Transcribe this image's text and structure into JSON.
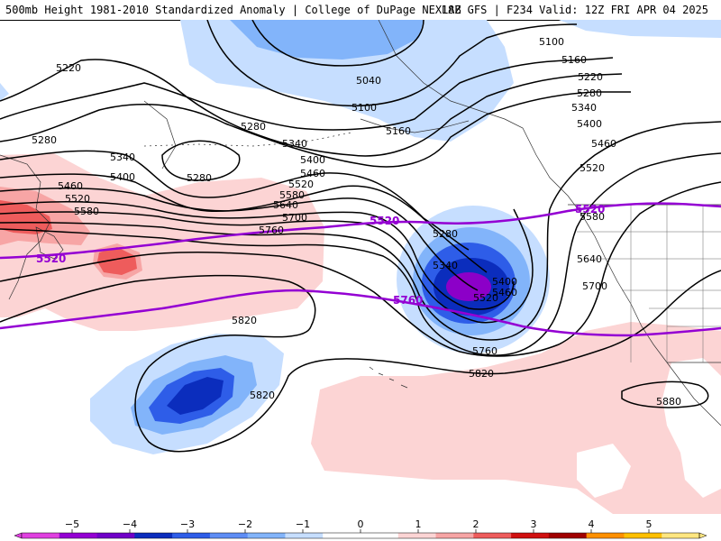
{
  "header": {
    "title_left": "500mb Height 1981-2010 Standardized Anomaly | College of DuPage NEXLAB",
    "title_right": "18Z GFS | F234 Valid: 12Z FRI APR 04 2025"
  },
  "map": {
    "height_contour_labels": [
      "5100",
      "5160",
      "5220",
      "5280",
      "5340",
      "5400",
      "5460",
      "5520",
      "5580",
      "5640",
      "5700",
      "5760",
      "5820",
      "5880",
      "5040"
    ],
    "thickness_labels": [
      "5520",
      "5760"
    ],
    "anomaly_centers": {
      "negative": [
        "Gulf of Alaska low",
        "Central Pacific low",
        "Bering / Arctic low"
      ],
      "positive": [
        "Japan / NW Pacific ridge",
        "Subtropical Pacific ridge"
      ]
    },
    "colors": {
      "neg1": "#c6deff",
      "neg2": "#82b4fa",
      "neg3": "#2e5de8",
      "neg4": "#0b2dbd",
      "neg5": "#8c00c8",
      "pos1": "#fcd4d4",
      "pos2": "#f7a5a5",
      "pos3": "#ee5c5c",
      "contour": "#000000",
      "thickness": "#9400d3",
      "coast": "#333333"
    }
  },
  "colorbar": {
    "ticks": [
      "−5",
      "−4",
      "−3",
      "−2",
      "−1",
      "0",
      "1",
      "2",
      "3",
      "4",
      "5"
    ],
    "segments": [
      "#e040e0",
      "#9400d3",
      "#7000c8",
      "#0b2dbd",
      "#2e5de8",
      "#5e8df5",
      "#82b4fa",
      "#c6deff",
      "#ffffff",
      "#ffffff",
      "#fcd4d4",
      "#f7a5a5",
      "#ee5c5c",
      "#d01010",
      "#a00000",
      "#ff9000",
      "#ffc000",
      "#ffe680"
    ]
  }
}
